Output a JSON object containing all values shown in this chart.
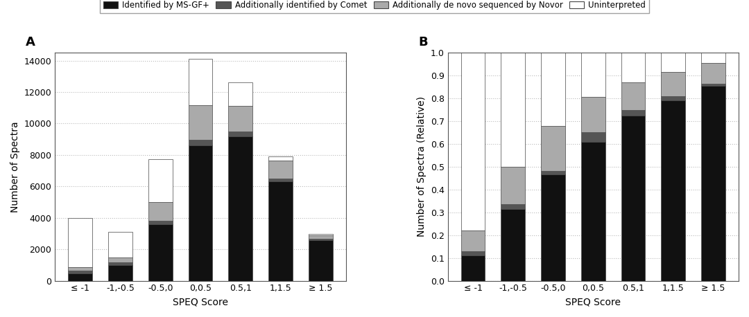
{
  "categories": [
    "≤ -1",
    "-1,-0.5",
    "-0.5,0",
    "0,0.5",
    "0.5,1",
    "1,1.5",
    "≥ 1.5"
  ],
  "ms_gf_plus": [
    450,
    1000,
    3600,
    8600,
    9200,
    6300,
    2600
  ],
  "comet": [
    200,
    150,
    200,
    350,
    300,
    200,
    80
  ],
  "novor": [
    200,
    350,
    1200,
    2200,
    1600,
    1150,
    200
  ],
  "uninterpreted_abs": [
    3150,
    1600,
    2750,
    2950,
    1500,
    250,
    80
  ],
  "rel_ms_gf_plus": [
    0.11,
    0.315,
    0.465,
    0.61,
    0.725,
    0.79,
    0.855
  ],
  "rel_comet": [
    0.02,
    0.02,
    0.015,
    0.04,
    0.025,
    0.02,
    0.008
  ],
  "rel_novor": [
    0.09,
    0.165,
    0.2,
    0.155,
    0.12,
    0.105,
    0.092
  ],
  "rel_uninterpreted": [
    0.78,
    0.5,
    0.32,
    0.195,
    0.13,
    0.085,
    0.045
  ],
  "color_ms_gf_plus": "#111111",
  "color_comet": "#555555",
  "color_novor": "#aaaaaa",
  "color_uninterpreted": "#ffffff",
  "bar_edgecolor": "#444444",
  "title_A": "A",
  "title_B": "B",
  "xlabel": "SPEQ Score",
  "ylabel_A": "Number of Spectra",
  "ylabel_B": "Number of Spectra (Relative)",
  "legend_labels": [
    "Identified by MS-GF+",
    "Additionally identified by Comet",
    "Additionally de novo sequenced by Novor",
    "Uninterpreted"
  ],
  "legend_colors": [
    "#111111",
    "#555555",
    "#aaaaaa",
    "#ffffff"
  ],
  "ylim_A": [
    0,
    14500
  ],
  "ylim_B": [
    0,
    1.0
  ],
  "yticks_A": [
    0,
    2000,
    4000,
    6000,
    8000,
    10000,
    12000,
    14000
  ],
  "yticks_B": [
    0.0,
    0.1,
    0.2,
    0.3,
    0.4,
    0.5,
    0.6,
    0.7,
    0.8,
    0.9,
    1.0
  ],
  "background_color": "#ffffff",
  "grid_color": "#bbbbbb",
  "bar_width": 0.6
}
